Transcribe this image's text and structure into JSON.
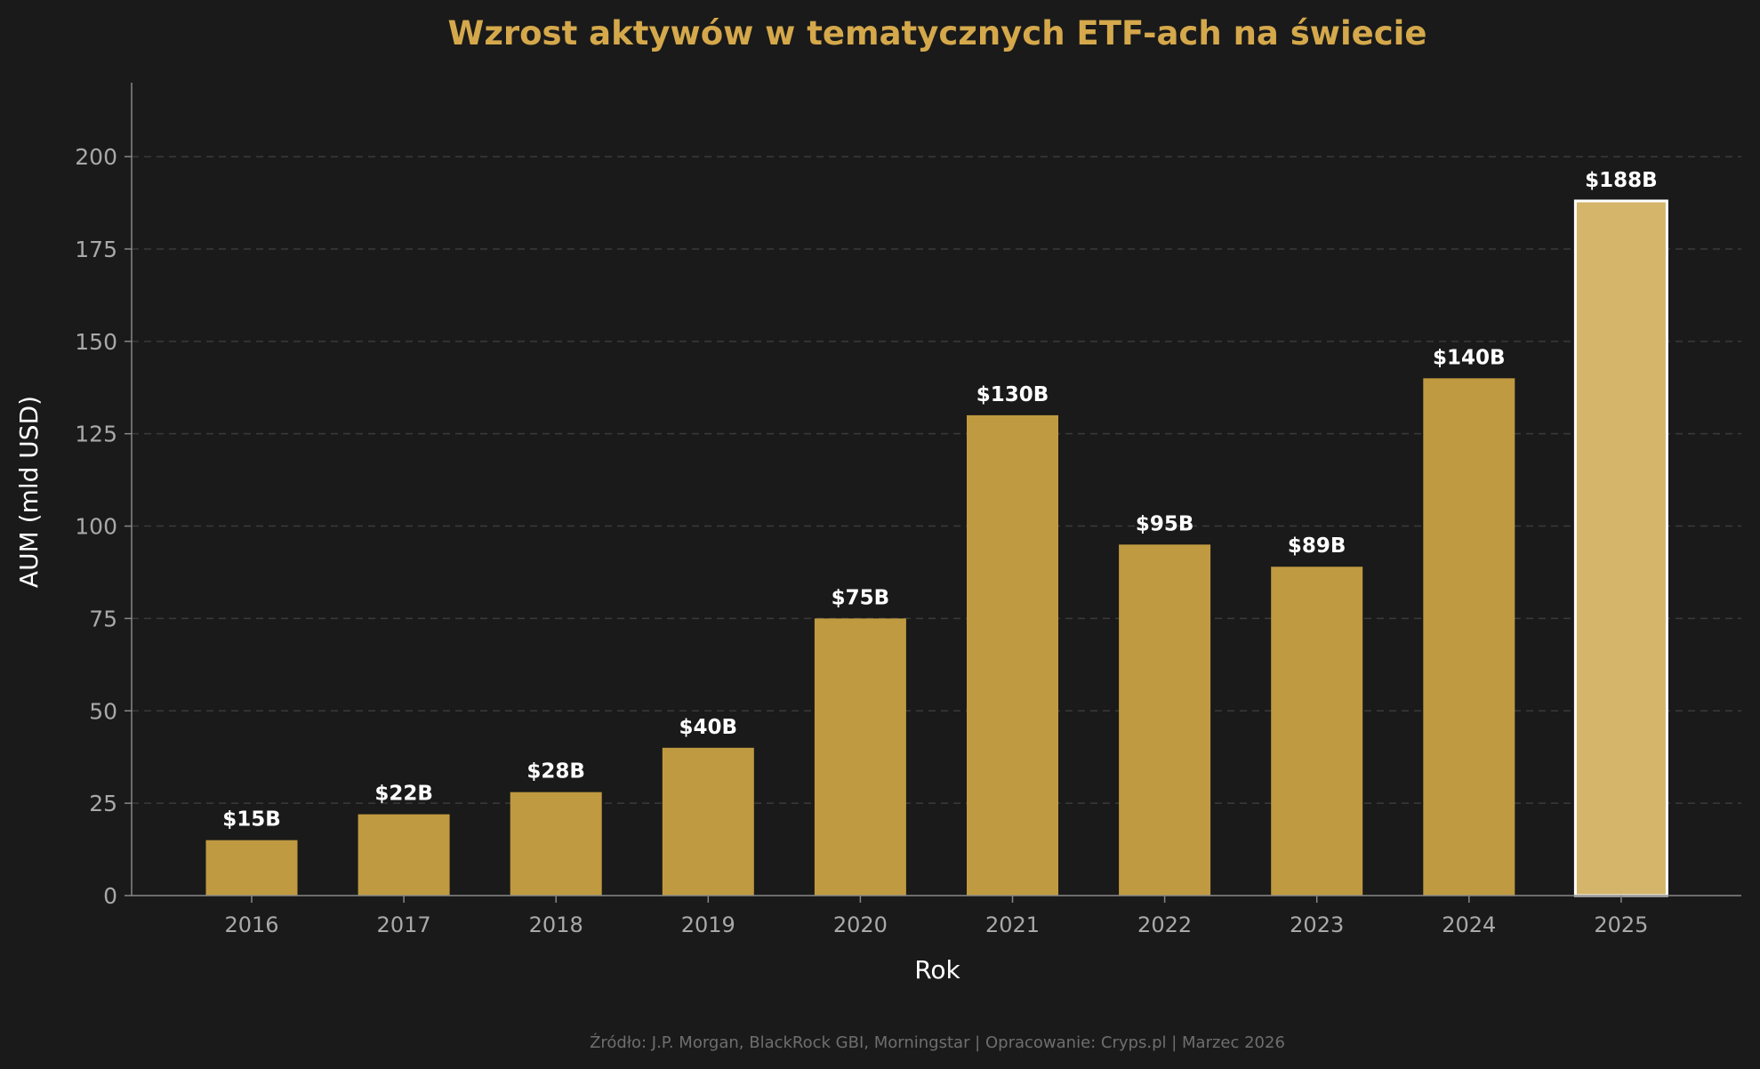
{
  "chart_data": {
    "type": "bar",
    "title": "Wzrost aktywów w tematycznych ETF-ach na świecie",
    "xlabel": "Rok",
    "ylabel": "AUM (mld USD)",
    "categories": [
      "2016",
      "2017",
      "2018",
      "2019",
      "2020",
      "2021",
      "2022",
      "2023",
      "2024",
      "2025"
    ],
    "values": [
      15,
      22,
      28,
      40,
      75,
      130,
      95,
      89,
      140,
      188
    ],
    "data_labels": [
      "$15B",
      "$22B",
      "$28B",
      "$40B",
      "$75B",
      "$130B",
      "$95B",
      "$89B",
      "$140B",
      "$188B"
    ],
    "ylim": [
      0,
      220
    ],
    "yticks": [
      0,
      25,
      50,
      75,
      100,
      125,
      150,
      175,
      200
    ],
    "grid": true,
    "highlight_index": 9,
    "colors": {
      "bar": "#c09a40",
      "highlight_bar": "#d4b56a",
      "highlight_outline": "#ffffff",
      "grid": "#3a3a3a",
      "axis": "#888888"
    }
  },
  "footer": {
    "source": "Źródło: J.P. Morgan, BlackRock GBI, Morningstar | Opracowanie: Cryps.pl | Marzec 2026"
  }
}
